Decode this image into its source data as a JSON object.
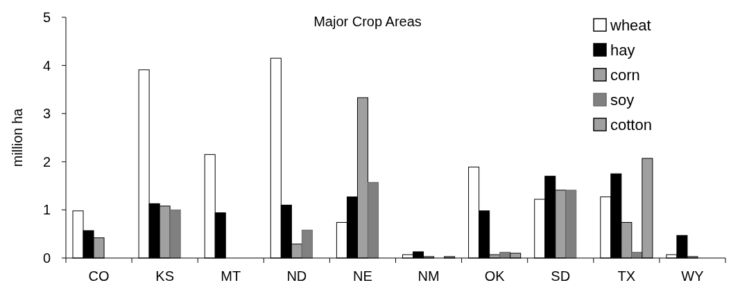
{
  "chart_data": {
    "type": "bar",
    "title": "Major Crop Areas",
    "ylabel": "million ha",
    "categories": [
      "CO",
      "KS",
      "MT",
      "ND",
      "NE",
      "NM",
      "OK",
      "SD",
      "TX",
      "WY"
    ],
    "series": [
      {
        "name": "wheat",
        "color": "#ffffff",
        "values": [
          0.98,
          3.91,
          2.15,
          4.15,
          0.74,
          0.07,
          1.89,
          1.22,
          1.27,
          0.07
        ]
      },
      {
        "name": "hay",
        "color": "#000000",
        "values": [
          0.57,
          1.13,
          0.94,
          1.1,
          1.27,
          0.13,
          0.98,
          1.7,
          1.75,
          0.47
        ]
      },
      {
        "name": "corn",
        "color": "#a0a0a0",
        "values": [
          0.42,
          1.08,
          null,
          0.29,
          3.33,
          0.03,
          0.07,
          1.41,
          0.74,
          0.03
        ]
      },
      {
        "name": "soy",
        "color": "#808080",
        "values": [
          null,
          1.0,
          null,
          0.58,
          1.57,
          null,
          0.12,
          1.41,
          0.12,
          null
        ]
      },
      {
        "name": "cotton",
        "color": "#a0a0a0",
        "values": [
          null,
          null,
          null,
          null,
          null,
          0.03,
          0.1,
          null,
          2.07,
          null
        ]
      }
    ],
    "ylim": [
      0,
      5
    ],
    "yticks": [
      0,
      1,
      2,
      3,
      4,
      5
    ],
    "grid": false,
    "legend": "top right"
  }
}
